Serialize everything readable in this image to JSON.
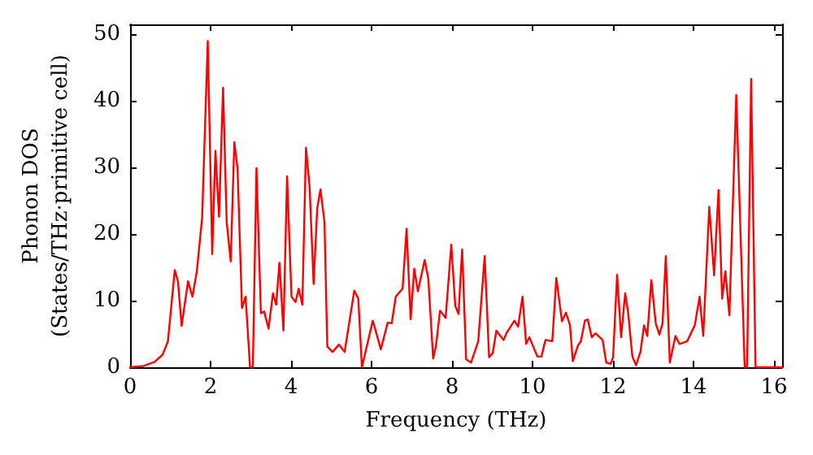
{
  "chart_data": {
    "type": "line",
    "xlabel": "Frequency (THz)",
    "ylabel": "Phonon DOS\n(States/THz·primitive cell)",
    "xlim": [
      0,
      16.2
    ],
    "xticks": [
      0,
      2,
      4,
      6,
      8,
      10,
      12,
      14,
      16
    ],
    "ylim": [
      0,
      51.5
    ],
    "yticks": [
      0,
      10,
      20,
      30,
      40,
      50
    ],
    "marker": "none",
    "line_style": "solid",
    "series": [
      {
        "color": "#ff0000",
        "x": [
          0,
          0.34,
          0.61,
          0.81,
          0.94,
          1.11,
          1.19,
          1.28,
          1.44,
          1.55,
          1.66,
          1.79,
          1.93,
          2.04,
          2.12,
          2.21,
          2.31,
          2.4,
          2.5,
          2.59,
          2.67,
          2.78,
          2.87,
          2.98,
          3.05,
          3.14,
          3.25,
          3.33,
          3.44,
          3.55,
          3.63,
          3.71,
          3.81,
          3.9,
          4.01,
          4.11,
          4.19,
          4.28,
          4.37,
          4.46,
          4.56,
          4.65,
          4.73,
          4.83,
          4.9,
          5.03,
          5.19,
          5.33,
          5.57,
          5.67,
          5.76,
          6.03,
          6.23,
          6.4,
          6.5,
          6.6,
          6.77,
          6.87,
          6.97,
          7.06,
          7.15,
          7.32,
          7.41,
          7.53,
          7.6,
          7.7,
          7.84,
          7.98,
          8.08,
          8.16,
          8.25,
          8.35,
          8.47,
          8.65,
          8.81,
          8.92,
          9.01,
          9.1,
          9.28,
          9.35,
          9.55,
          9.64,
          9.75,
          9.84,
          9.92,
          10.12,
          10.22,
          10.32,
          10.49,
          10.59,
          10.73,
          10.83,
          10.93,
          11.0,
          11.13,
          11.2,
          11.3,
          11.37,
          11.47,
          11.56,
          11.74,
          11.83,
          11.94,
          12.0,
          12.1,
          12.2,
          12.3,
          12.37,
          12.48,
          12.57,
          12.68,
          12.77,
          12.85,
          12.95,
          13.06,
          13.15,
          13.23,
          13.31,
          13.41,
          13.55,
          13.65,
          13.84,
          14.03,
          14.15,
          14.24,
          14.39,
          14.51,
          14.62,
          14.71,
          14.79,
          14.89,
          15.06,
          15.27,
          15.33,
          15.43,
          15.54,
          16.2
        ],
        "values": [
          0,
          0.2,
          0.8,
          1.9,
          3.9,
          14.6,
          12.9,
          6.2,
          12.9,
          10.6,
          14.5,
          22.5,
          49,
          17,
          32.5,
          22.6,
          42,
          21.8,
          15.9,
          33.8,
          29.9,
          8.9,
          10.6,
          0,
          0,
          29.9,
          8.1,
          8.4,
          5.8,
          11.1,
          9.4,
          15.7,
          5.5,
          28.7,
          10.6,
          9.8,
          11.8,
          9.4,
          33,
          27.1,
          12.5,
          23.9,
          26.7,
          21.8,
          3.1,
          2.3,
          3.4,
          2.3,
          11.5,
          10.3,
          0,
          7,
          2.7,
          6.7,
          6.6,
          10.6,
          11.8,
          20.8,
          7.2,
          14.8,
          11.4,
          16.1,
          13.3,
          1.3,
          3.2,
          8.5,
          7.4,
          18.4,
          9.2,
          8,
          17.7,
          1.2,
          0.7,
          3.9,
          16.7,
          1.5,
          2.1,
          5.5,
          4.1,
          5.1,
          7,
          6.1,
          10.6,
          3.5,
          4.5,
          1.6,
          1.6,
          4.1,
          3.9,
          13.4,
          6.9,
          8.2,
          6.3,
          0.9,
          3.3,
          3.9,
          7,
          7.2,
          4.5,
          5.1,
          4.1,
          0.7,
          0.5,
          1.5,
          13.9,
          4.5,
          11.1,
          8.4,
          1.6,
          0.3,
          2.3,
          6.3,
          4.7,
          13.1,
          6.6,
          4.9,
          6.6,
          16.7,
          0.7,
          4.7,
          3.5,
          3.9,
          6.3,
          10.6,
          4.7,
          24.1,
          13.8,
          26.6,
          10.3,
          14.4,
          7.8,
          40.9,
          0,
          0,
          43.3,
          0,
          0
        ]
      }
    ]
  }
}
